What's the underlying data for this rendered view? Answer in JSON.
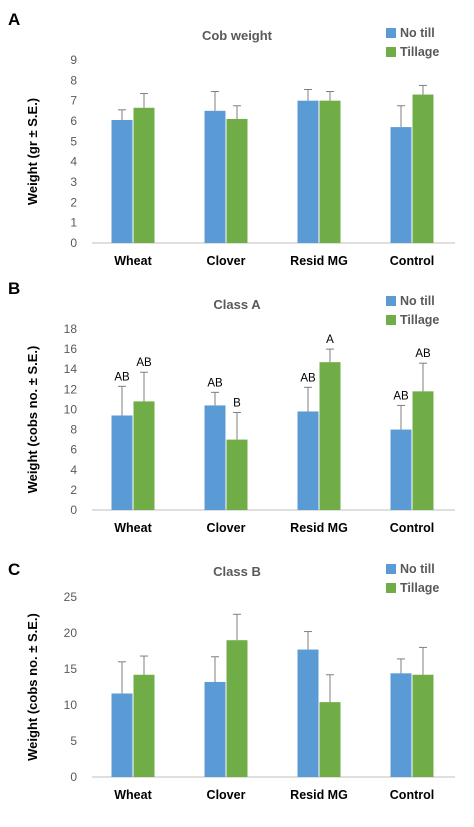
{
  "colors": {
    "no_till": "#5b9bd5",
    "tillage": "#70ad47",
    "axis": "#bfbfbf",
    "error_bar": "#7f7f7f"
  },
  "chart_data": [
    {
      "panel": "A",
      "type": "bar",
      "title": "Cob weight",
      "ylabel": "Weight (gr ± S.E.)",
      "categories": [
        "Wheat",
        "Clover",
        "Resid MG",
        "Control"
      ],
      "ylim": [
        0,
        9
      ],
      "yticks": [
        0,
        1,
        2,
        3,
        4,
        5,
        6,
        7,
        8,
        9
      ],
      "legend_position": "top-right",
      "series": [
        {
          "name": "No till",
          "values": [
            6.05,
            6.5,
            7.0,
            5.7
          ],
          "errors": [
            0.5,
            0.95,
            0.55,
            1.05
          ],
          "labels": []
        },
        {
          "name": "Tillage",
          "values": [
            6.65,
            6.1,
            7.0,
            7.3
          ],
          "errors": [
            0.7,
            0.65,
            0.45,
            0.45
          ],
          "labels": []
        }
      ]
    },
    {
      "panel": "B",
      "type": "bar",
      "title": "Class A",
      "ylabel": "Weight (cobs no. ± S.E.)",
      "categories": [
        "Wheat",
        "Clover",
        "Resid MG",
        "Control"
      ],
      "ylim": [
        0,
        18
      ],
      "yticks": [
        0,
        2,
        4,
        6,
        8,
        10,
        12,
        14,
        16,
        18
      ],
      "legend_position": "top-right",
      "series": [
        {
          "name": "No till",
          "values": [
            9.4,
            10.4,
            9.8,
            8.0
          ],
          "errors": [
            2.9,
            1.3,
            2.4,
            2.4
          ],
          "labels": [
            "AB",
            "AB",
            "AB",
            "AB"
          ]
        },
        {
          "name": "Tillage",
          "values": [
            10.8,
            7.0,
            14.7,
            11.8
          ],
          "errors": [
            2.9,
            2.7,
            1.3,
            2.8
          ],
          "labels": [
            "AB",
            "B",
            "A",
            "AB"
          ]
        }
      ]
    },
    {
      "panel": "C",
      "type": "bar",
      "title": "Class B",
      "ylabel": "Weight (cobs no. ± S.E.)",
      "categories": [
        "Wheat",
        "Clover",
        "Resid MG",
        "Control"
      ],
      "ylim": [
        0,
        25
      ],
      "yticks": [
        0,
        5,
        10,
        15,
        20,
        25
      ],
      "legend_position": "top-right",
      "series": [
        {
          "name": "No till",
          "values": [
            11.6,
            13.2,
            17.7,
            14.4
          ],
          "errors": [
            4.4,
            3.5,
            2.5,
            2.0
          ],
          "labels": []
        },
        {
          "name": "Tillage",
          "values": [
            14.2,
            19.0,
            10.4,
            14.2
          ],
          "errors": [
            2.6,
            3.6,
            3.8,
            3.8
          ],
          "labels": []
        }
      ]
    }
  ]
}
